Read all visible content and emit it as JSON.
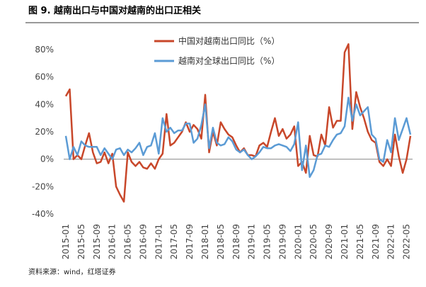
{
  "chart_data": {
    "type": "line",
    "title": "图 9. 越南出口与中国对越南的出口正相关",
    "source": "资料来源：wind，红塔证券",
    "categories": [
      "2015-01",
      null,
      null,
      null,
      "2015-05",
      null,
      null,
      null,
      "2015-09",
      null,
      null,
      null,
      "2016-01",
      null,
      null,
      null,
      "2016-05",
      null,
      null,
      null,
      "2016-09",
      null,
      null,
      null,
      "2017-01",
      null,
      null,
      null,
      "2017-05",
      null,
      null,
      null,
      "2017-09",
      null,
      null,
      null,
      "2018-01",
      null,
      null,
      null,
      "2018-05",
      null,
      null,
      null,
      "2018-09",
      null,
      null,
      null,
      "2019-01",
      null,
      null,
      null,
      "2019-05",
      null,
      null,
      null,
      "2019-09",
      null,
      null,
      null,
      "2020-01",
      null,
      null,
      null,
      "2020-05",
      null,
      null,
      null,
      "2020-09",
      null,
      null,
      null,
      "2021-01",
      null,
      null,
      null,
      "2021-05",
      null,
      null,
      null,
      "2021-09",
      null,
      null,
      null,
      "2022-01",
      null,
      null,
      null,
      "2022-05",
      null
    ],
    "series": [
      {
        "name": "中国对越南出口同比（%）",
        "color": "#c8472a",
        "values": [
          46,
          51,
          0,
          3,
          0,
          10,
          19,
          5,
          -3,
          -2,
          5,
          -3,
          4,
          -20,
          -26,
          -31,
          5,
          -2,
          -5,
          -2,
          -6,
          -7,
          -3,
          -7,
          0,
          4,
          33,
          10,
          12,
          16,
          20,
          27,
          20,
          25,
          22,
          15,
          47,
          5,
          20,
          10,
          27,
          22,
          18,
          16,
          10,
          5,
          8,
          3,
          3,
          2,
          10,
          12,
          9,
          20,
          30,
          17,
          22,
          15,
          18,
          24,
          -5,
          -2,
          -10,
          17,
          3,
          2,
          18,
          10,
          38,
          23,
          28,
          28,
          78,
          84,
          22,
          49,
          38,
          30,
          20,
          14,
          12,
          -2,
          -5,
          0,
          -5,
          18,
          2,
          -10,
          0,
          17
        ]
      },
      {
        "name": "越南对全球出口同比（%）",
        "color": "#5b9bd5",
        "values": [
          17,
          0,
          9,
          3,
          13,
          10,
          9,
          9,
          9,
          3,
          8,
          4,
          0,
          7,
          8,
          3,
          7,
          5,
          8,
          12,
          3,
          9,
          10,
          19,
          4,
          30,
          20,
          23,
          19,
          21,
          21,
          26,
          26,
          12,
          15,
          25,
          40,
          8,
          23,
          12,
          10,
          11,
          16,
          13,
          7,
          5,
          7,
          3,
          0,
          2,
          5,
          9,
          8,
          8,
          10,
          11,
          10,
          9,
          6,
          11,
          27,
          -8,
          10,
          -13,
          -8,
          3,
          4,
          10,
          9,
          14,
          18,
          19,
          24,
          45,
          28,
          40,
          32,
          35,
          38,
          18,
          15,
          0,
          -2,
          14,
          5,
          30,
          14,
          22,
          30,
          18
        ]
      }
    ],
    "ylim": [
      -40,
      80
    ],
    "yticks": [
      {
        "value": -40,
        "label": "-40%"
      },
      {
        "value": -20,
        "label": "-20%"
      },
      {
        "value": 0,
        "label": "0%"
      },
      {
        "value": 20,
        "label": "20%"
      },
      {
        "value": 40,
        "label": "40%"
      },
      {
        "value": 60,
        "label": "60%"
      },
      {
        "value": 80,
        "label": "80%"
      }
    ],
    "grid": false
  }
}
